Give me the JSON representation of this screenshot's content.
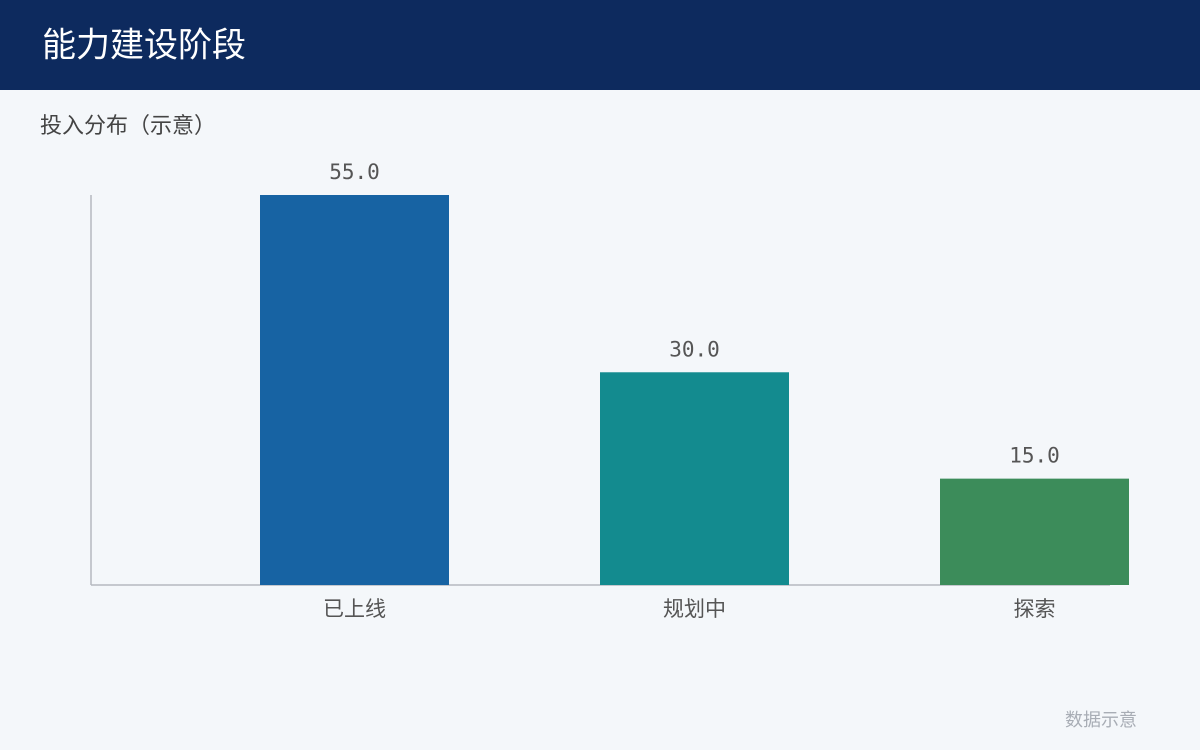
{
  "header": {
    "title": "能力建设阶段"
  },
  "chart_data": {
    "type": "bar",
    "title": "投入分布（示意）",
    "categories": [
      "已上线",
      "规划中",
      "探索"
    ],
    "values": [
      55,
      30,
      15
    ],
    "value_labels": [
      "55.0",
      "30.0",
      "15.0"
    ],
    "colors": [
      "#1763a3",
      "#138b8f",
      "#3c8c5a"
    ],
    "ylim": [
      0,
      55
    ]
  },
  "footer": {
    "note": "数据示意"
  }
}
